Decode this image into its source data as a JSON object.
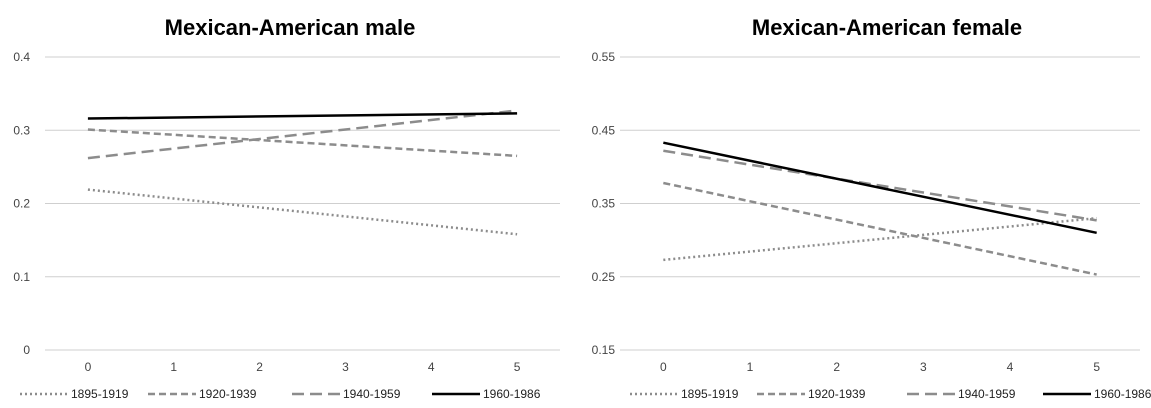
{
  "chart_data": [
    {
      "type": "line",
      "title": "Mexican-American male",
      "xlabel": "",
      "ylabel": "",
      "x": [
        0,
        5
      ],
      "xticks": [
        "0",
        "1",
        "2",
        "3",
        "4",
        "5"
      ],
      "xlim": [
        0,
        5
      ],
      "ylim": [
        0,
        0.4
      ],
      "yticks": [
        "0",
        "0.1",
        "0.2",
        "0.3",
        "0.4"
      ],
      "grid": true,
      "legend_position": "bottom",
      "series": [
        {
          "name": "1895-1919",
          "values": [
            0.219,
            0.158
          ],
          "style": "dotted",
          "color": "#8c8c8c"
        },
        {
          "name": "1920-1939",
          "values": [
            0.301,
            0.265
          ],
          "style": "dashed",
          "color": "#8c8c8c"
        },
        {
          "name": "1940-1959",
          "values": [
            0.262,
            0.327
          ],
          "style": "longdash",
          "color": "#8c8c8c"
        },
        {
          "name": "1960-1986",
          "values": [
            0.316,
            0.323
          ],
          "style": "solid",
          "color": "#000000"
        }
      ]
    },
    {
      "type": "line",
      "title": "Mexican-American female",
      "xlabel": "",
      "ylabel": "",
      "x": [
        0,
        5
      ],
      "xticks": [
        "0",
        "1",
        "2",
        "3",
        "4",
        "5"
      ],
      "xlim": [
        0,
        5
      ],
      "ylim": [
        0.15,
        0.55
      ],
      "yticks": [
        "0.15",
        "0.25",
        "0.35",
        "0.45",
        "0.55"
      ],
      "grid": true,
      "legend_position": "bottom",
      "series": [
        {
          "name": "1895-1919",
          "values": [
            0.273,
            0.33
          ],
          "style": "dotted",
          "color": "#8c8c8c"
        },
        {
          "name": "1920-1939",
          "values": [
            0.378,
            0.253
          ],
          "style": "dashed",
          "color": "#8c8c8c"
        },
        {
          "name": "1940-1959",
          "values": [
            0.422,
            0.327
          ],
          "style": "longdash",
          "color": "#8c8c8c"
        },
        {
          "name": "1960-1986",
          "values": [
            0.433,
            0.31
          ],
          "style": "solid",
          "color": "#000000"
        }
      ]
    }
  ]
}
